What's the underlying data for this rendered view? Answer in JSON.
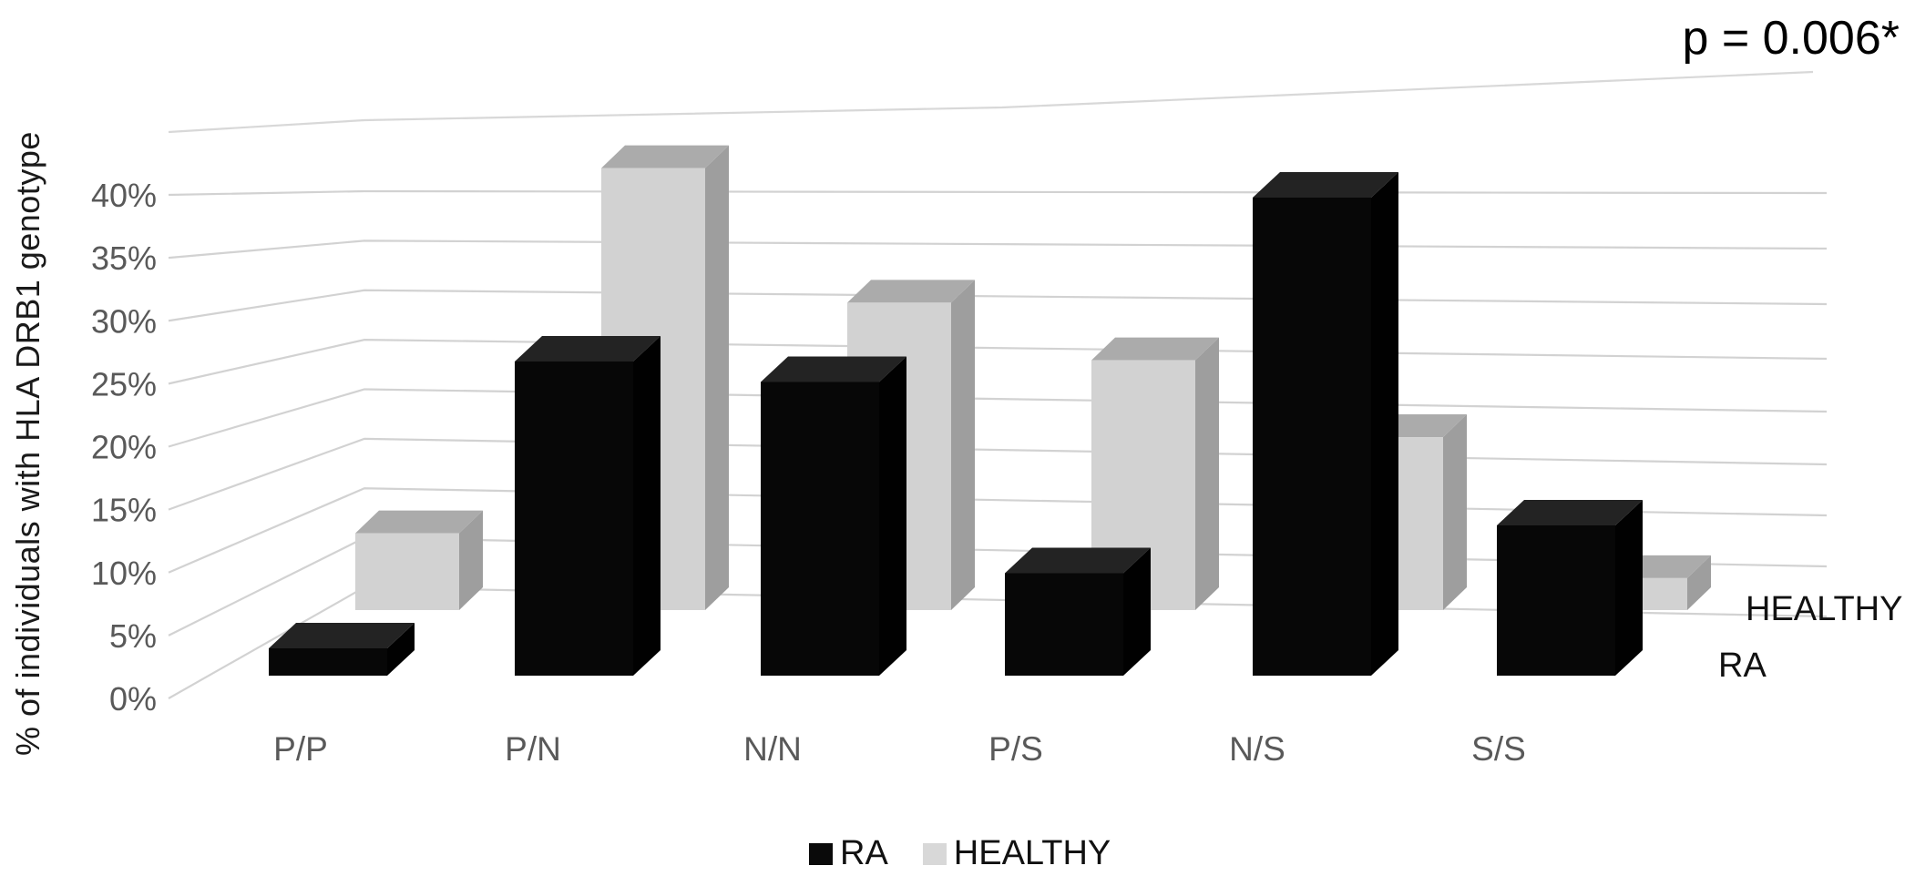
{
  "annotation": {
    "p_value": "p = 0.006*"
  },
  "y_axis": {
    "title": "% of individuals with HLA DRB1 genotype",
    "tick_labels": [
      "0%",
      "5%",
      "10%",
      "15%",
      "20%",
      "25%",
      "30%",
      "35%",
      "40%"
    ]
  },
  "row_labels": {
    "back": "HEALTHY",
    "front": "RA"
  },
  "legend": {
    "items": [
      {
        "label": "RA",
        "color": "#0a0a0a"
      },
      {
        "label": "HEALTHY",
        "color": "#d8d8d8"
      }
    ]
  },
  "chart_data": {
    "type": "bar",
    "subtype": "3d-column-two-rows",
    "title": "",
    "xlabel": "",
    "ylabel": "% of individuals with HLA DRB1 genotype",
    "categories": [
      "P/P",
      "P/N",
      "N/N",
      "P/S",
      "N/S",
      "S/S"
    ],
    "series": [
      {
        "name": "RA",
        "row": "front",
        "color": "#0a0a0a",
        "values": [
          2,
          23,
          21.5,
          7.5,
          35,
          11
        ]
      },
      {
        "name": "HEALTHY",
        "row": "back",
        "color": "#d8d8d8",
        "values": [
          6,
          34.5,
          24,
          19.5,
          13.5,
          2.5
        ]
      }
    ],
    "value_unit": "%",
    "ylim": [
      0,
      45
    ],
    "ytick_step": 5,
    "yticks_labeled_max": 40,
    "grid": true,
    "legend_position": "bottom",
    "annotation": "p = 0.006*"
  }
}
